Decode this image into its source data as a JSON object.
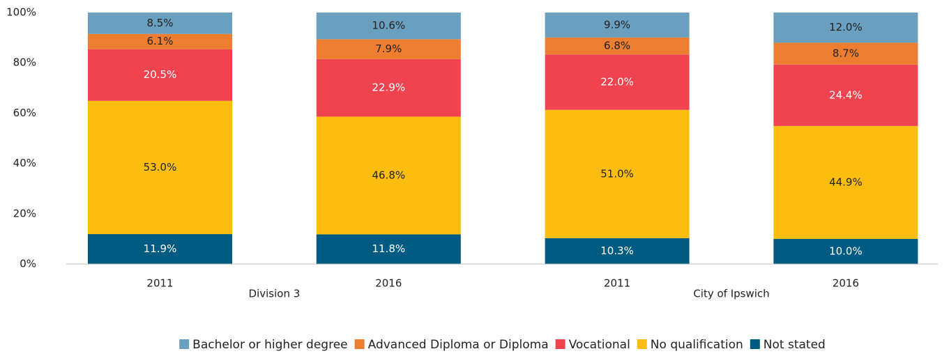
{
  "chart_data": {
    "type": "stacked_bar",
    "categories": [
      "2011",
      "2016",
      "2011",
      "2016"
    ],
    "group_labels": [
      "Division 3",
      "City of Ipswich"
    ],
    "series": [
      {
        "name": "Bachelor or higher degree",
        "color": "#6a9fc0",
        "label_color": "#222222",
        "values": [
          8.5,
          10.6,
          9.9,
          12.0
        ],
        "value_labels": [
          "8.5%",
          "10.6%",
          "9.9%",
          "12.0%"
        ]
      },
      {
        "name": "Advanced Diploma or Diploma",
        "color": "#ed7d31",
        "label_color": "#222222",
        "values": [
          6.1,
          7.9,
          6.8,
          8.7
        ],
        "value_labels": [
          "6.1%",
          "7.9%",
          "6.8%",
          "8.7%"
        ]
      },
      {
        "name": "Vocational",
        "color": "#ef444f",
        "label_color": "#ffffff",
        "values": [
          20.5,
          22.9,
          22.0,
          24.4
        ],
        "value_labels": [
          "20.5%",
          "22.9%",
          "22.0%",
          "24.4%"
        ]
      },
      {
        "name": "No qualification",
        "color": "#fbbd0f",
        "label_color": "#222222",
        "values": [
          53.0,
          46.8,
          51.0,
          44.9
        ],
        "value_labels": [
          "53.0%",
          "46.8%",
          "51.0%",
          "44.9%"
        ]
      },
      {
        "name": "Not stated",
        "color": "#005b82",
        "label_color": "#ffffff",
        "values": [
          11.9,
          11.8,
          10.3,
          10.0
        ],
        "value_labels": [
          "11.9%",
          "11.8%",
          "10.3%",
          "10.0%"
        ]
      }
    ],
    "ylim": [
      0,
      100
    ],
    "yticks": [
      {
        "value": 0,
        "label": "0%"
      },
      {
        "value": 20,
        "label": "20%"
      },
      {
        "value": 40,
        "label": "40%"
      },
      {
        "value": 60,
        "label": "60%"
      },
      {
        "value": 80,
        "label": "80%"
      },
      {
        "value": 100,
        "label": "100%"
      }
    ],
    "grid": false,
    "legend": "bottom"
  }
}
